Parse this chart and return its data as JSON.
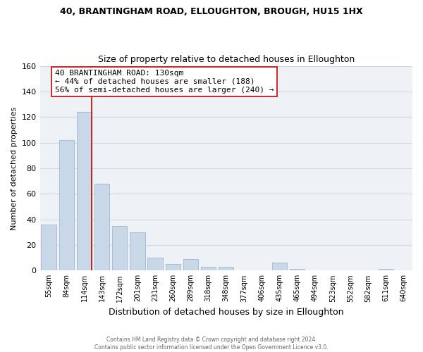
{
  "title": "40, BRANTINGHAM ROAD, ELLOUGHTON, BROUGH, HU15 1HX",
  "subtitle": "Size of property relative to detached houses in Elloughton",
  "xlabel": "Distribution of detached houses by size in Elloughton",
  "ylabel": "Number of detached properties",
  "categories": [
    "55sqm",
    "84sqm",
    "114sqm",
    "143sqm",
    "172sqm",
    "201sqm",
    "231sqm",
    "260sqm",
    "289sqm",
    "318sqm",
    "348sqm",
    "377sqm",
    "406sqm",
    "435sqm",
    "465sqm",
    "494sqm",
    "523sqm",
    "552sqm",
    "582sqm",
    "611sqm",
    "640sqm"
  ],
  "values": [
    36,
    102,
    124,
    68,
    35,
    30,
    10,
    5,
    9,
    3,
    3,
    0,
    0,
    6,
    1,
    0,
    0,
    0,
    0,
    1,
    0
  ],
  "bar_color": "#c8d8e8",
  "bar_edge_color": "#a0b8cc",
  "highlight_line_color": "#cc0000",
  "highlight_line_index": 2,
  "ylim": [
    0,
    160
  ],
  "yticks": [
    0,
    20,
    40,
    60,
    80,
    100,
    120,
    140,
    160
  ],
  "annotation_title": "40 BRANTINGHAM ROAD: 130sqm",
  "annotation_line1": "← 44% of detached houses are smaller (188)",
  "annotation_line2": "56% of semi-detached houses are larger (240) →",
  "footer_line1": "Contains HM Land Registry data © Crown copyright and database right 2024.",
  "footer_line2": "Contains public sector information licensed under the Open Government Licence v3.0.",
  "background_color": "#ffffff",
  "plot_bg_color": "#eef2f6",
  "grid_color": "#d0d8e4"
}
